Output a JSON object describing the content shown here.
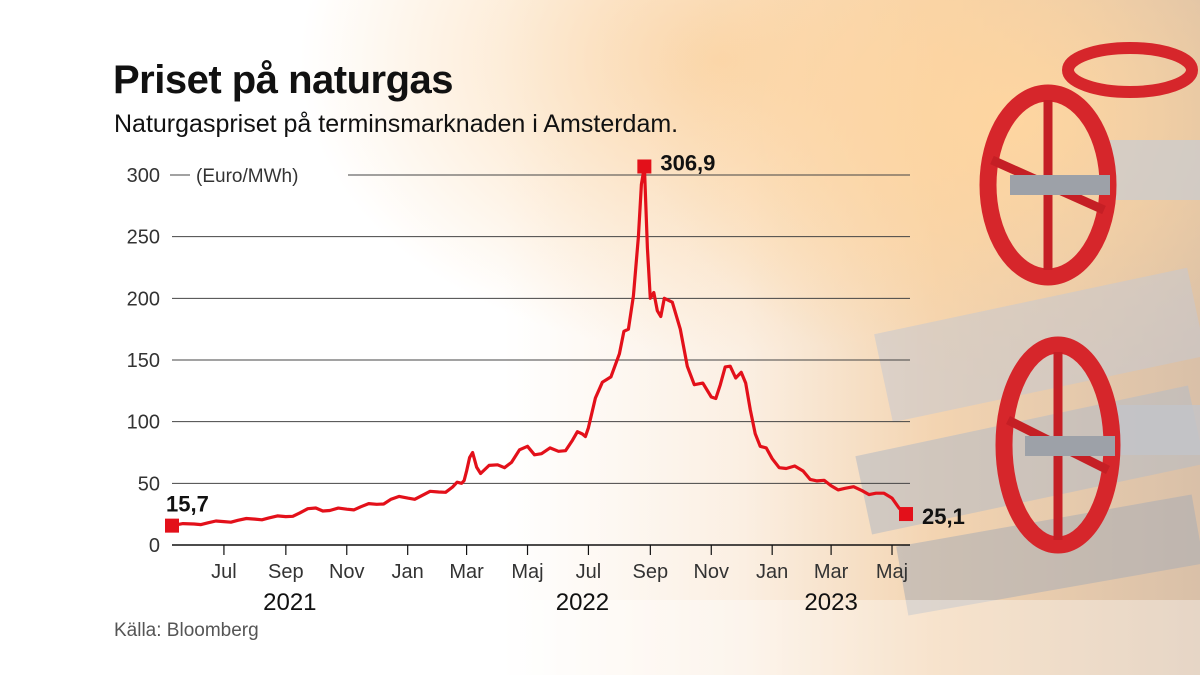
{
  "title": "Priset på naturgas",
  "subtitle": "Naturgaspriset på terminsmarknaden i Amsterdam.",
  "source": "Källa: Bloomberg",
  "colors": {
    "line": "#e3101a",
    "grid": "#444444",
    "text": "#111111"
  },
  "chart_data": {
    "type": "line",
    "unit_label": "(Euro/MWh)",
    "ylim": [
      0,
      300
    ],
    "y_ticks": [
      0,
      50,
      100,
      150,
      200,
      250,
      300
    ],
    "x_range": [
      "2021-05-10",
      "2023-05-15"
    ],
    "x_ticks": [
      {
        "label": "Jul",
        "date": "2021-07-01"
      },
      {
        "label": "Sep",
        "date": "2021-09-01"
      },
      {
        "label": "Nov",
        "date": "2021-11-01"
      },
      {
        "label": "Jan",
        "date": "2022-01-01"
      },
      {
        "label": "Mar",
        "date": "2022-03-01"
      },
      {
        "label": "Maj",
        "date": "2022-05-01"
      },
      {
        "label": "Jul",
        "date": "2022-07-01"
      },
      {
        "label": "Sep",
        "date": "2022-09-01"
      },
      {
        "label": "Nov",
        "date": "2022-11-01"
      },
      {
        "label": "Jan",
        "date": "2023-01-01"
      },
      {
        "label": "Mar",
        "date": "2023-03-01"
      },
      {
        "label": "Maj",
        "date": "2023-05-01"
      }
    ],
    "year_labels": [
      {
        "label": "2021",
        "date": "2021-09-05"
      },
      {
        "label": "2022",
        "date": "2022-06-25"
      },
      {
        "label": "2023",
        "date": "2023-03-01"
      }
    ],
    "grid": true,
    "series": [
      {
        "x": [
          "2021-05-10",
          "2021-06-01",
          "2021-06-15",
          "2021-07-01",
          "2021-07-15",
          "2021-08-01",
          "2021-08-15",
          "2021-09-01",
          "2021-09-15",
          "2021-10-01",
          "2021-10-15",
          "2021-11-01",
          "2021-11-15",
          "2021-12-01",
          "2021-12-15",
          "2022-01-01",
          "2022-01-15",
          "2022-02-01",
          "2022-02-15",
          "2022-02-24",
          "2022-03-01",
          "2022-03-07",
          "2022-03-15",
          "2022-04-01",
          "2022-04-15",
          "2022-05-01",
          "2022-05-15",
          "2022-06-01",
          "2022-06-15",
          "2022-06-25",
          "2022-07-01",
          "2022-07-15",
          "2022-08-01",
          "2022-08-10",
          "2022-08-20",
          "2022-08-26",
          "2022-09-01",
          "2022-09-08",
          "2022-09-15",
          "2022-10-01",
          "2022-10-15",
          "2022-11-01",
          "2022-11-10",
          "2022-11-20",
          "2022-12-01",
          "2022-12-10",
          "2022-12-20",
          "2023-01-01",
          "2023-01-15",
          "2023-02-01",
          "2023-02-15",
          "2023-03-01",
          "2023-03-15",
          "2023-04-01",
          "2023-04-15",
          "2023-05-01",
          "2023-05-15"
        ],
        "values": [
          15.7,
          17,
          18,
          19,
          20,
          21,
          22,
          23,
          26,
          30,
          28,
          29,
          31,
          33,
          37,
          38,
          40,
          43,
          47,
          50,
          60,
          75,
          58,
          65,
          67,
          80,
          74,
          76,
          85,
          90,
          95,
          132,
          155,
          175,
          250,
          306.9,
          200,
          190,
          200,
          175,
          130,
          120,
          130,
          145,
          140,
          110,
          80,
          70,
          62,
          60,
          52,
          48,
          46,
          44,
          42,
          38,
          25.1
        ]
      }
    ],
    "annotations": [
      {
        "label": "15,7",
        "date": "2021-05-10",
        "value": 15.7
      },
      {
        "label": "306,9",
        "date": "2022-08-26",
        "value": 306.9
      },
      {
        "label": "25,1",
        "date": "2023-05-15",
        "value": 25.1
      }
    ]
  }
}
